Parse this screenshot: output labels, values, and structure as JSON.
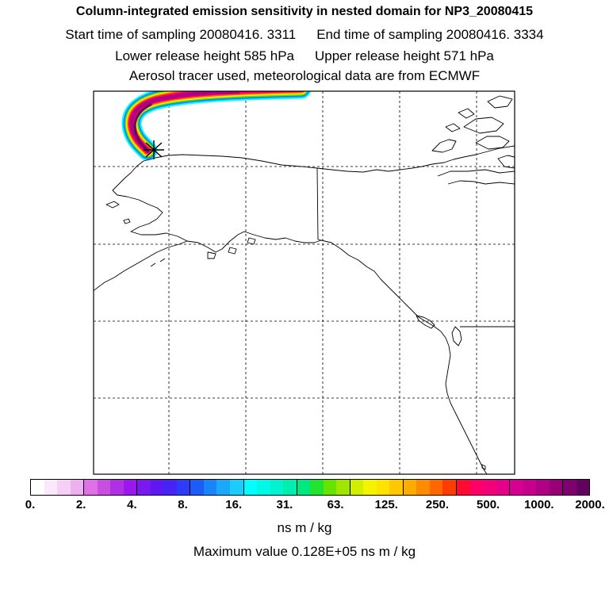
{
  "header": {
    "title": "Column-integrated emission sensitivity in nested domain for NP3_20080415",
    "start_label": "Start time of sampling 20080416.  3311",
    "end_label": "End time of sampling 20080416.  3334",
    "lower_label": "Lower release height  585 hPa",
    "upper_label": "Upper release height  571 hPa",
    "tracer_label": "Aerosol tracer used, meteorological data are from ECMWF"
  },
  "colorbar": {
    "tick_labels": [
      "0.",
      "2.",
      "4.",
      "8.",
      "16.",
      "31.",
      "63.",
      "125.",
      "250.",
      "500.",
      "1000.",
      "2000."
    ],
    "colors": [
      "#ffffff",
      "#fbe9fb",
      "#f5d0f5",
      "#eeb0ee",
      "#e070e6",
      "#c84ee2",
      "#b030e6",
      "#9a18ee",
      "#7a18f0",
      "#5e18f4",
      "#4624f6",
      "#2e3cf8",
      "#1e5cfa",
      "#1a84fa",
      "#1aa8fa",
      "#1acdfa",
      "#00ffff",
      "#00f8e8",
      "#00f2d0",
      "#00eeb0",
      "#00e880",
      "#22e430",
      "#66e400",
      "#9ee600",
      "#cfee00",
      "#f4f400",
      "#ffe200",
      "#ffc800",
      "#ffac00",
      "#ff8c00",
      "#ff6800",
      "#ff3c00",
      "#ff0a30",
      "#ff0066",
      "#f4007a",
      "#e6008a",
      "#d60090",
      "#c4008c",
      "#b00084",
      "#98007a",
      "#800070",
      "#640060"
    ],
    "unit": "ns m / kg",
    "max_label": "Maximum value  0.128E+05 ns m / kg"
  }
}
